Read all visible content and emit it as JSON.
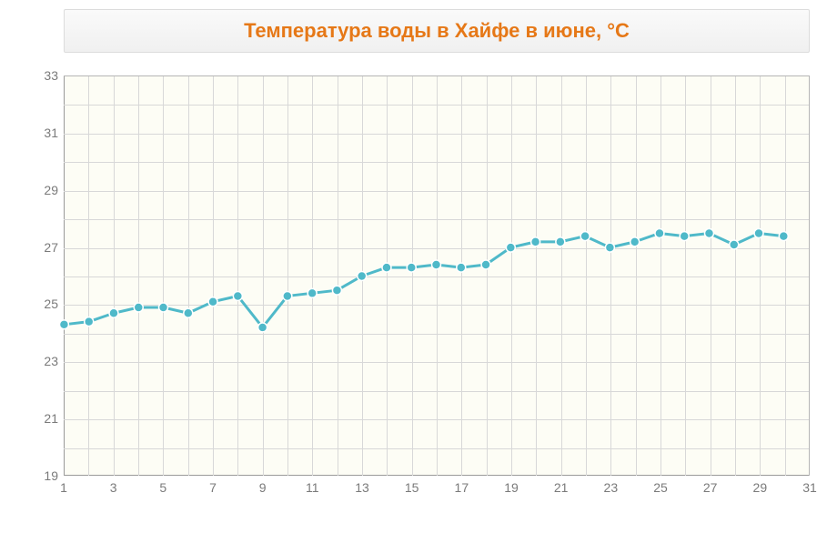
{
  "title": "Температура воды в Хайфе в июне, °C",
  "chart": {
    "type": "line",
    "background_color": "#fdfdf5",
    "grid_color": "#d8d8d8",
    "axis_color": "#9a9a9a",
    "tick_label_color": "#7a7a7a",
    "tick_fontsize": 14,
    "title_color": "#e67817",
    "title_fontsize": 22,
    "line_color": "#4fb9c9",
    "line_width": 3,
    "marker_fill": "#4fb9c9",
    "marker_stroke": "#ffffff",
    "marker_radius": 5,
    "marker_stroke_width": 1.5,
    "xlim": [
      1,
      31
    ],
    "ylim": [
      19,
      33
    ],
    "xticks": [
      1,
      3,
      5,
      7,
      9,
      11,
      13,
      15,
      17,
      19,
      21,
      23,
      25,
      27,
      29,
      31
    ],
    "yticks": [
      19,
      21,
      23,
      25,
      27,
      29,
      31,
      33
    ],
    "x_minor_grid_step": 1,
    "y_minor_grid_step": 1,
    "x_values": [
      1,
      2,
      3,
      4,
      5,
      6,
      7,
      8,
      9,
      10,
      11,
      12,
      13,
      14,
      15,
      16,
      17,
      18,
      19,
      20,
      21,
      22,
      23,
      24,
      25,
      26,
      27,
      28,
      29,
      30
    ],
    "y_values": [
      24.3,
      24.4,
      24.7,
      24.9,
      24.9,
      24.7,
      25.1,
      25.3,
      24.2,
      25.3,
      25.4,
      25.5,
      26.0,
      26.3,
      26.3,
      26.4,
      26.3,
      26.4,
      27.0,
      27.2,
      27.2,
      27.4,
      27.0,
      27.2,
      27.5,
      27.4,
      27.5,
      27.1,
      27.5,
      27.4
    ]
  }
}
